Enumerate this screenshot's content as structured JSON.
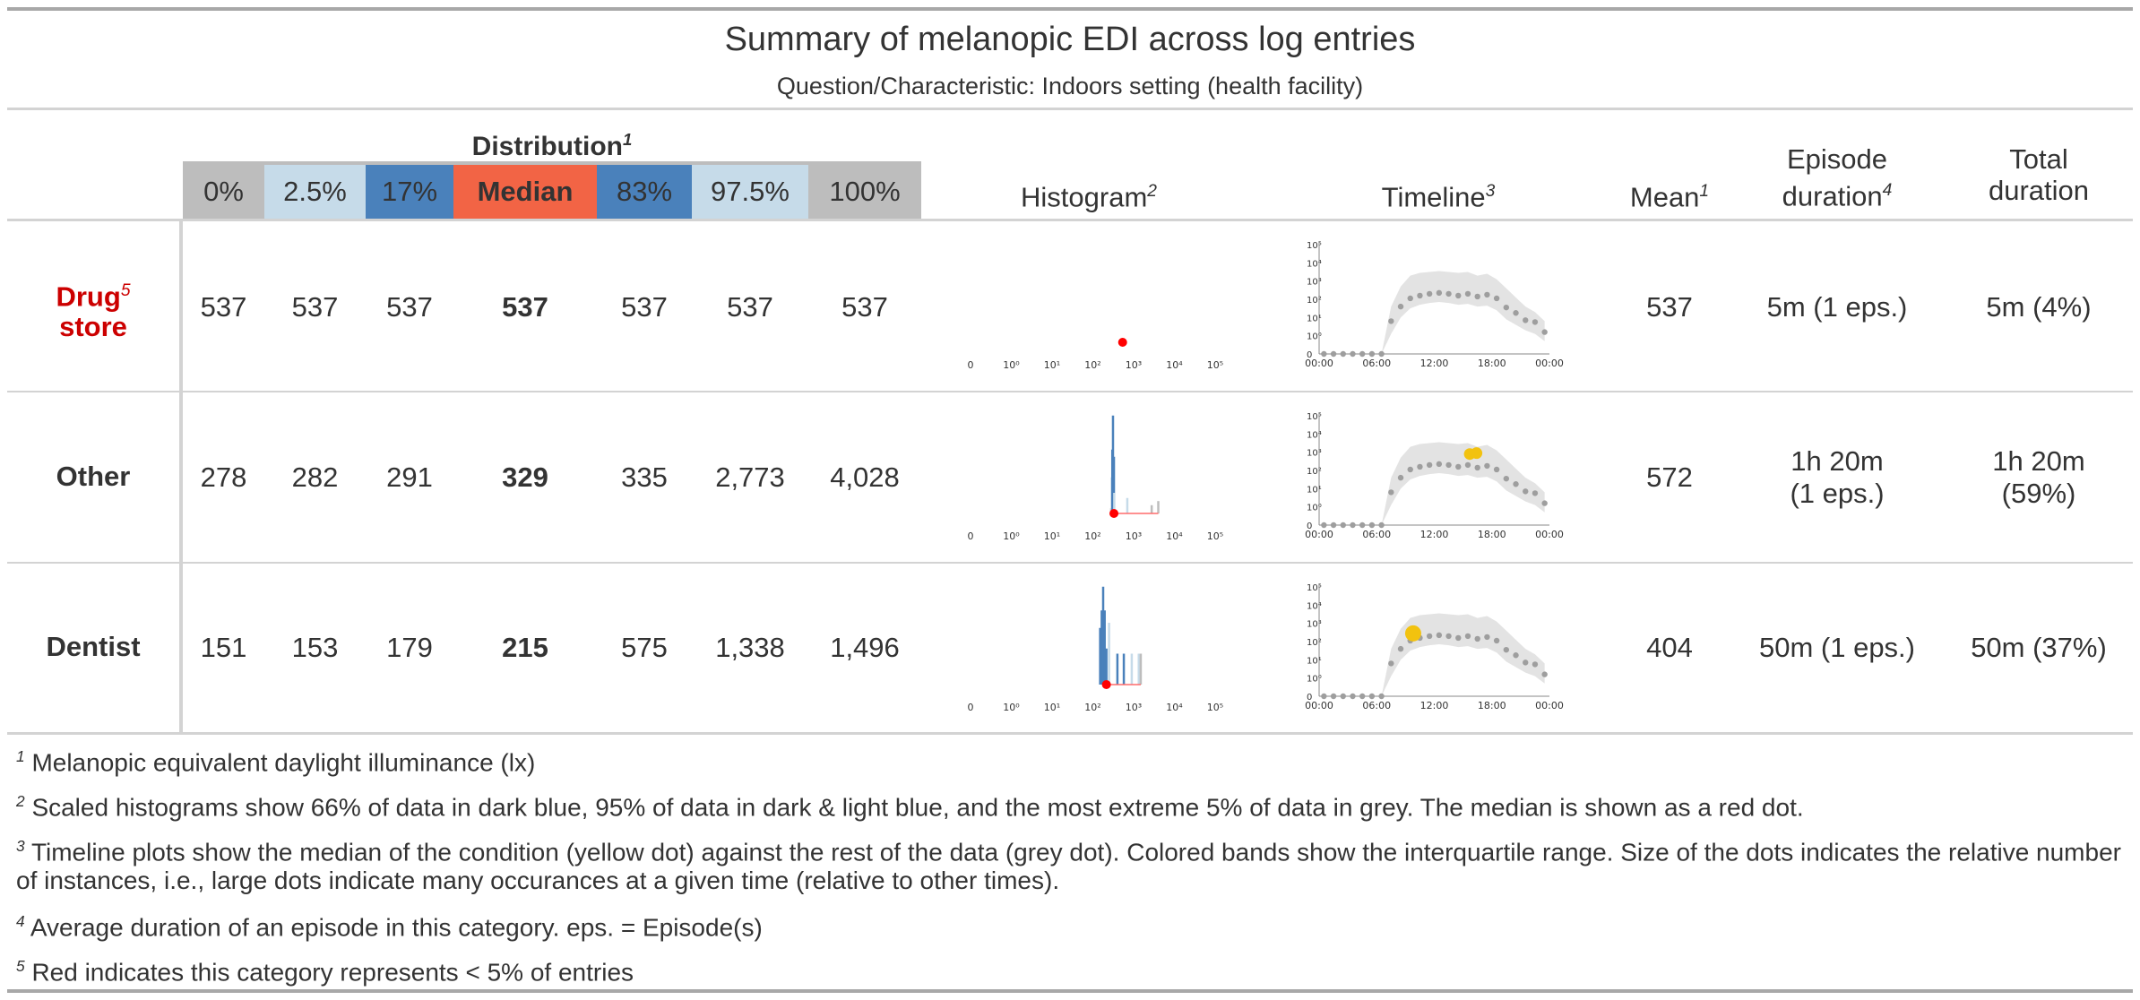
{
  "title": "Summary of melanopic EDI across log entries",
  "subtitle": "Question/Characteristic: Indoors setting (health facility)",
  "colors": {
    "grey": "#bdbdbd",
    "light_blue": "#c6dbe9",
    "dark_blue": "#4a81bb",
    "median": "#f26445",
    "red_label": "#cc0000",
    "median_dot": "#ff0000",
    "yellow_dot": "#f2c20f",
    "grey_dot": "#9e9e9e",
    "band": "#e3e3e3"
  },
  "headers": {
    "distribution": "Distribution",
    "distribution_note": "1",
    "quantiles": [
      "0%",
      "2.5%",
      "17%",
      "Median",
      "83%",
      "97.5%",
      "100%"
    ],
    "histogram": "Histogram",
    "histogram_note": "2",
    "timeline": "Timeline",
    "timeline_note": "3",
    "mean": "Mean",
    "mean_note": "1",
    "episode_line1": "Episode",
    "episode_line2": "duration",
    "episode_note": "4",
    "total_line1": "Total",
    "total_line2": "duration"
  },
  "rows": [
    {
      "label_line1": "Drug",
      "label_line2": "store",
      "label_note": "5",
      "red": true,
      "quantiles": [
        "537",
        "537",
        "537",
        "537",
        "537",
        "537",
        "537"
      ],
      "mean": "537",
      "episode": [
        "5m (1 eps.)"
      ],
      "total": [
        "5m (4%)"
      ]
    },
    {
      "label_line1": "Other",
      "label_line2": "",
      "label_note": "",
      "red": false,
      "quantiles": [
        "278",
        "282",
        "291",
        "329",
        "335",
        "2,773",
        "4,028"
      ],
      "mean": "572",
      "episode": [
        "1h 20m",
        "(1 eps.)"
      ],
      "total": [
        "1h 20m",
        "(59%)"
      ]
    },
    {
      "label_line1": "Dentist",
      "label_line2": "",
      "label_note": "",
      "red": false,
      "quantiles": [
        "151",
        "153",
        "179",
        "215",
        "575",
        "1,338",
        "1,496"
      ],
      "mean": "404",
      "episode": [
        "50m (1 eps.)"
      ],
      "total": [
        "50m (37%)"
      ]
    }
  ],
  "chart_data": [
    {
      "type": "bar",
      "name": "Histogram",
      "x_scale": "log",
      "x_tick_labels": [
        "0",
        "10⁰",
        "10¹",
        "10²",
        "10³",
        "10⁴",
        "10⁵"
      ],
      "rows": [
        {
          "label": "Drug store",
          "median": 537,
          "bars": []
        },
        {
          "label": "Other",
          "median": 329,
          "bars": [
            {
              "x": 282,
              "height": 0.05,
              "color": "grey"
            },
            {
              "x": 291,
              "height": 0.35,
              "color": "light_blue"
            },
            {
              "x": 300,
              "height": 0.62,
              "color": "dark_blue"
            },
            {
              "x": 312,
              "height": 0.95,
              "color": "dark_blue"
            },
            {
              "x": 329,
              "height": 0.55,
              "color": "dark_blue"
            },
            {
              "x": 335,
              "height": 0.2,
              "color": "light_blue"
            },
            {
              "x": 700,
              "height": 0.15,
              "color": "light_blue"
            },
            {
              "x": 2773,
              "height": 0.08,
              "color": "grey"
            },
            {
              "x": 4028,
              "height": 0.12,
              "color": "grey"
            }
          ]
        },
        {
          "label": "Dentist",
          "median": 215,
          "bars": [
            {
              "x": 151,
              "height": 0.55,
              "color": "dark_blue"
            },
            {
              "x": 165,
              "height": 0.72,
              "color": "dark_blue"
            },
            {
              "x": 179,
              "height": 0.95,
              "color": "dark_blue"
            },
            {
              "x": 195,
              "height": 0.72,
              "color": "dark_blue"
            },
            {
              "x": 215,
              "height": 0.35,
              "color": "dark_blue"
            },
            {
              "x": 250,
              "height": 0.6,
              "color": "light_blue"
            },
            {
              "x": 400,
              "height": 0.3,
              "color": "dark_blue"
            },
            {
              "x": 575,
              "height": 0.3,
              "color": "dark_blue"
            },
            {
              "x": 900,
              "height": 0.3,
              "color": "light_blue"
            },
            {
              "x": 1338,
              "height": 0.3,
              "color": "light_blue"
            },
            {
              "x": 1496,
              "height": 0.3,
              "color": "grey"
            }
          ]
        }
      ]
    },
    {
      "type": "line",
      "name": "Timeline",
      "x_tick_labels": [
        "00:00",
        "06:00",
        "12:00",
        "18:00",
        "00:00"
      ],
      "y_scale": "log",
      "y_tick_labels": [
        "0",
        "10⁰",
        "10¹",
        "10²",
        "10³",
        "10⁴",
        "10⁵"
      ],
      "background_median_hours": [
        0,
        1,
        2,
        3,
        4,
        5,
        6,
        7,
        8,
        9,
        10,
        11,
        12,
        13,
        14,
        15,
        16,
        17,
        18,
        19,
        20,
        21,
        22,
        23
      ],
      "background_median_log": [
        -1,
        -1,
        -1,
        -1,
        -1,
        -1,
        -1,
        0.8,
        1.6,
        2.05,
        2.2,
        2.3,
        2.35,
        2.3,
        2.2,
        2.3,
        2.15,
        2.25,
        2.05,
        1.55,
        1.25,
        0.85,
        0.75,
        0.2
      ],
      "band_low_log": [
        -1,
        -1,
        -1,
        -1,
        -1,
        -1,
        -1,
        0.1,
        1.0,
        1.5,
        1.7,
        1.8,
        1.85,
        1.8,
        1.7,
        1.75,
        1.6,
        1.65,
        1.4,
        0.9,
        0.6,
        0.3,
        0.1,
        -0.3
      ],
      "band_high_log": [
        -1,
        -1,
        -1,
        -1,
        -1,
        -1,
        -1,
        1.6,
        2.7,
        3.3,
        3.45,
        3.5,
        3.55,
        3.5,
        3.45,
        3.5,
        3.3,
        3.4,
        3.1,
        2.6,
        2.1,
        1.6,
        1.3,
        0.8
      ],
      "rows": [
        {
          "label": "Drug store",
          "condition_points": []
        },
        {
          "label": "Other",
          "condition_points": [
            {
              "hour": 15.7,
              "log": 2.9,
              "size": "medium"
            },
            {
              "hour": 16.4,
              "log": 2.95,
              "size": "medium"
            }
          ]
        },
        {
          "label": "Dentist",
          "condition_points": [
            {
              "hour": 9.8,
              "log": 2.45,
              "size": "large"
            }
          ]
        }
      ]
    }
  ],
  "footnotes": [
    {
      "mark": "1",
      "text": "Melanopic equivalent daylight illuminance (lx)"
    },
    {
      "mark": "2",
      "text": "Scaled histograms show 66% of data in dark blue, 95% of data in dark & light blue, and the most extreme 5% of data in grey. The median is shown as a red dot."
    },
    {
      "mark": "3",
      "text": "Timeline plots show the median of the condition (yellow dot) against the rest of the data (grey dot). Colored bands show the interquartile range. Size of the dots indicates the relative number of instances, i.e., large dots indicate many occurances at a given time (relative to other times)."
    },
    {
      "mark": "4",
      "text": "Average duration of an episode in this category. eps. = Episode(s)"
    },
    {
      "mark": "5",
      "text": "Red indicates this category represents < 5% of entries"
    }
  ]
}
